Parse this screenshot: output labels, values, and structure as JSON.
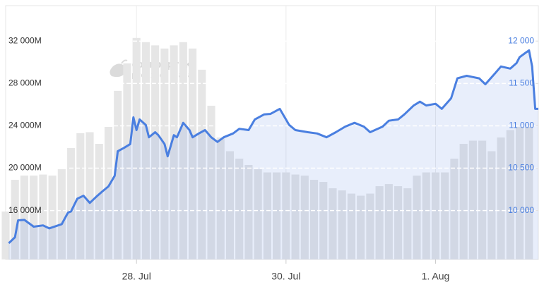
{
  "chart_data": {
    "type": "combo",
    "watermark": [
      "coinpaprika",
      "provides data"
    ],
    "xlim": [
      -42,
      129
    ],
    "xticks": [
      {
        "value": 0,
        "label": "28. Jul"
      },
      {
        "value": 48,
        "label": "30. Jul"
      },
      {
        "value": 96,
        "label": "1. Aug"
      }
    ],
    "ylim": [
      11380,
      35350
    ],
    "yticks": [
      {
        "value": 16000,
        "label": "16 000M"
      },
      {
        "value": 20000,
        "label": "20 000M"
      },
      {
        "value": 24000,
        "label": "24 000M"
      },
      {
        "value": 28000,
        "label": "28 000M"
      },
      {
        "value": 32000,
        "label": "32 000M"
      }
    ],
    "y2lim": [
      9423,
      12418
    ],
    "y2ticks": [
      {
        "value": 10000,
        "label": "10 000"
      },
      {
        "value": 10500,
        "label": "10 500"
      },
      {
        "value": 11000,
        "label": "11 000"
      },
      {
        "value": 11500,
        "label": "11 500"
      },
      {
        "value": 12000,
        "label": "12 000"
      }
    ],
    "grid": true,
    "series": [
      {
        "type": "bar",
        "axis": "y",
        "color": "#e6e6e6",
        "x": [
          -42,
          -39,
          -36,
          -33,
          -30,
          -27,
          -24,
          -21,
          -18,
          -15,
          -12,
          -9,
          -6,
          -3,
          0,
          3,
          6,
          9,
          12,
          15,
          18,
          21,
          24,
          27,
          30,
          33,
          36,
          39,
          42,
          45,
          48,
          51,
          54,
          57,
          60,
          63,
          66,
          69,
          72,
          75,
          78,
          81,
          84,
          87,
          90,
          93,
          96,
          99,
          102,
          105,
          108,
          111,
          114,
          117,
          120,
          123,
          126
        ],
        "values": [
          15900,
          18900,
          19300,
          19300,
          19400,
          19300,
          19900,
          21900,
          23300,
          23400,
          22300,
          23900,
          27300,
          29900,
          32300,
          31900,
          31600,
          31300,
          31600,
          31900,
          31300,
          29300,
          25900,
          22900,
          21600,
          20900,
          20300,
          19900,
          19600,
          19600,
          19600,
          19400,
          19300,
          18900,
          18700,
          18100,
          17900,
          17600,
          17400,
          17600,
          18300,
          18500,
          18300,
          18100,
          19300,
          19600,
          19600,
          19600,
          20900,
          22300,
          22600,
          22600,
          21600,
          22900,
          23600,
          23900,
          23900
        ]
      },
      {
        "type": "line",
        "axis": "y2",
        "color": "#4a7fe0",
        "x": [
          -41,
          -39,
          -38,
          -36,
          -33,
          -30,
          -28,
          -24,
          -22,
          -21,
          -19,
          -17,
          -15,
          -13,
          -11,
          -9,
          -7,
          -6,
          -4,
          -2,
          -1,
          0,
          1,
          3,
          4,
          6,
          7,
          9,
          10,
          12,
          13,
          15,
          17,
          18,
          20,
          22,
          24,
          26,
          28,
          31,
          33,
          36,
          38,
          41,
          43,
          46,
          49,
          51,
          55,
          58,
          61,
          64,
          67,
          70,
          73,
          75,
          79,
          81,
          84,
          86,
          89,
          91,
          93,
          96,
          98,
          101,
          103,
          106,
          108,
          110,
          112,
          115,
          117,
          120,
          122,
          123,
          125,
          126,
          127,
          128,
          129
        ],
        "values": [
          9615,
          9685,
          9885,
          9890,
          9810,
          9825,
          9790,
          9840,
          9975,
          9990,
          10140,
          10175,
          10090,
          10160,
          10225,
          10285,
          10410,
          10700,
          10740,
          10785,
          11100,
          10950,
          11075,
          11010,
          10865,
          10925,
          10890,
          10785,
          10640,
          10890,
          10865,
          11035,
          10950,
          10865,
          10910,
          10950,
          10865,
          10810,
          10865,
          10910,
          10965,
          10950,
          11075,
          11135,
          11140,
          11200,
          11010,
          10950,
          10925,
          10910,
          10865,
          10925,
          10990,
          11035,
          10990,
          10925,
          10990,
          11060,
          11075,
          11135,
          11240,
          11285,
          11240,
          11260,
          11200,
          11325,
          11560,
          11590,
          11575,
          11560,
          11490,
          11615,
          11700,
          11675,
          11740,
          11810,
          11865,
          11890,
          11700,
          11200,
          11200
        ]
      }
    ]
  }
}
